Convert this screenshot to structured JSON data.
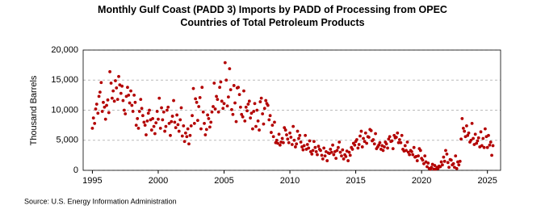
{
  "chart_data": {
    "type": "scatter",
    "title": "Monthly Gulf Coast (PADD 3) Imports by PADD of Processing from OPEC Countries of Total Petroleum Products",
    "y_label": "Thousand Barrels",
    "source": "Source: U.S. Energy Information Administration",
    "color": "#b30000",
    "grid": true,
    "xlim": [
      1994.3,
      2026.0
    ],
    "xticks": [
      1995,
      2000,
      2005,
      2010,
      2015,
      2020,
      2025
    ],
    "ylim": [
      0,
      20000
    ],
    "yticks": [
      0,
      {
        "value": 5000,
        "label": "5,000"
      },
      {
        "value": 10000,
        "label": "10,000"
      },
      {
        "value": 15000,
        "label": "15,000"
      },
      {
        "value": 20000,
        "label": "20,000"
      }
    ],
    "x": [
      1995,
      1995.08,
      1995.17,
      1995.25,
      1995.33,
      1995.42,
      1995.5,
      1995.58,
      1995.67,
      1995.75,
      1995.83,
      1995.92,
      1996,
      1996.08,
      1996.17,
      1996.25,
      1996.33,
      1996.42,
      1996.5,
      1996.58,
      1996.67,
      1996.75,
      1996.83,
      1996.92,
      1997,
      1997.08,
      1997.17,
      1997.25,
      1997.33,
      1997.42,
      1997.5,
      1997.58,
      1997.67,
      1997.75,
      1997.83,
      1997.92,
      1998,
      1998.08,
      1998.17,
      1998.25,
      1998.33,
      1998.42,
      1998.5,
      1998.58,
      1998.67,
      1998.75,
      1998.83,
      1998.92,
      1999,
      1999.08,
      1999.17,
      1999.25,
      1999.33,
      1999.42,
      1999.5,
      1999.58,
      1999.67,
      1999.75,
      1999.83,
      1999.92,
      2000,
      2000.08,
      2000.17,
      2000.25,
      2000.33,
      2000.42,
      2000.5,
      2000.58,
      2000.67,
      2000.75,
      2000.83,
      2000.92,
      2001,
      2001.08,
      2001.17,
      2001.25,
      2001.33,
      2001.42,
      2001.5,
      2001.58,
      2001.67,
      2001.75,
      2001.83,
      2001.92,
      2002,
      2002.08,
      2002.17,
      2002.25,
      2002.33,
      2002.42,
      2002.5,
      2002.58,
      2002.67,
      2002.75,
      2002.83,
      2002.92,
      2003,
      2003.08,
      2003.17,
      2003.25,
      2003.33,
      2003.42,
      2003.5,
      2003.58,
      2003.67,
      2003.75,
      2003.83,
      2003.92,
      2004,
      2004.08,
      2004.17,
      2004.25,
      2004.33,
      2004.42,
      2004.5,
      2004.58,
      2004.67,
      2004.75,
      2004.83,
      2004.92,
      2005,
      2005.08,
      2005.17,
      2005.25,
      2005.33,
      2005.42,
      2005.5,
      2005.58,
      2005.67,
      2005.75,
      2005.83,
      2005.92,
      2006,
      2006.08,
      2006.17,
      2006.25,
      2006.33,
      2006.42,
      2006.5,
      2006.58,
      2006.67,
      2006.75,
      2006.83,
      2006.92,
      2007,
      2007.08,
      2007.17,
      2007.25,
      2007.33,
      2007.42,
      2007.5,
      2007.58,
      2007.67,
      2007.75,
      2007.83,
      2007.92,
      2008,
      2008.08,
      2008.17,
      2008.25,
      2008.33,
      2008.42,
      2008.5,
      2008.58,
      2008.67,
      2008.75,
      2008.83,
      2008.92,
      2009,
      2009.08,
      2009.17,
      2009.25,
      2009.33,
      2009.42,
      2009.5,
      2009.58,
      2009.67,
      2009.75,
      2009.83,
      2009.92,
      2010,
      2010.08,
      2010.17,
      2010.25,
      2010.33,
      2010.42,
      2010.5,
      2010.58,
      2010.67,
      2010.75,
      2010.83,
      2010.92,
      2011,
      2011.08,
      2011.17,
      2011.25,
      2011.33,
      2011.42,
      2011.5,
      2011.58,
      2011.67,
      2011.75,
      2011.83,
      2011.92,
      2012,
      2012.08,
      2012.17,
      2012.25,
      2012.33,
      2012.42,
      2012.5,
      2012.58,
      2012.67,
      2012.75,
      2012.83,
      2012.92,
      2013,
      2013.08,
      2013.17,
      2013.25,
      2013.33,
      2013.42,
      2013.5,
      2013.58,
      2013.67,
      2013.75,
      2013.83,
      2013.92,
      2014,
      2014.08,
      2014.17,
      2014.25,
      2014.33,
      2014.42,
      2014.5,
      2014.58,
      2014.67,
      2014.75,
      2014.83,
      2014.92,
      2015,
      2015.08,
      2015.17,
      2015.25,
      2015.33,
      2015.42,
      2015.5,
      2015.58,
      2015.67,
      2015.75,
      2015.83,
      2015.92,
      2016,
      2016.08,
      2016.17,
      2016.25,
      2016.33,
      2016.42,
      2016.5,
      2016.58,
      2016.67,
      2016.75,
      2016.83,
      2016.92,
      2017,
      2017.08,
      2017.17,
      2017.25,
      2017.33,
      2017.42,
      2017.5,
      2017.58,
      2017.67,
      2017.75,
      2017.83,
      2017.92,
      2018,
      2018.08,
      2018.17,
      2018.25,
      2018.33,
      2018.42,
      2018.5,
      2018.58,
      2018.67,
      2018.75,
      2018.83,
      2018.92,
      2019,
      2019.08,
      2019.17,
      2019.25,
      2019.33,
      2019.42,
      2019.5,
      2019.58,
      2019.67,
      2019.75,
      2019.83,
      2019.92,
      2020,
      2020.08,
      2020.17,
      2020.25,
      2020.33,
      2020.42,
      2020.5,
      2020.58,
      2020.67,
      2020.75,
      2020.83,
      2020.92,
      2021,
      2021.08,
      2021.17,
      2021.25,
      2021.33,
      2021.42,
      2021.5,
      2021.58,
      2021.67,
      2021.75,
      2021.83,
      2021.92,
      2022,
      2022.08,
      2022.17,
      2022.25,
      2022.33,
      2022.42,
      2022.5,
      2022.58,
      2022.67,
      2022.75,
      2022.83,
      2022.92,
      2023,
      2023.08,
      2023.17,
      2023.25,
      2023.33,
      2023.42,
      2023.5,
      2023.58,
      2023.67,
      2023.75,
      2023.83,
      2023.92,
      2024,
      2024.08,
      2024.17,
      2024.25,
      2024.33,
      2024.42,
      2024.5,
      2024.58,
      2024.67,
      2024.75,
      2024.83,
      2024.92,
      2025,
      2025.08,
      2025.17,
      2025.25,
      2025.33,
      2025.42
    ],
    "values": [
      7000,
      8700,
      7800,
      10200,
      11000,
      9500,
      12300,
      13000,
      14600,
      9800,
      11300,
      10500,
      8500,
      10800,
      11700,
      9600,
      16400,
      14500,
      12000,
      13200,
      11500,
      14900,
      13700,
      11800,
      15600,
      14200,
      12800,
      14000,
      11600,
      10000,
      9400,
      12300,
      13800,
      12500,
      11200,
      13200,
      10800,
      9800,
      12500,
      11300,
      7500,
      8600,
      7000,
      9800,
      11800,
      10300,
      9100,
      8000,
      7500,
      5900,
      8200,
      9500,
      10000,
      8400,
      6700,
      8600,
      7300,
      6100,
      7900,
      9800,
      8500,
      12000,
      7000,
      10400,
      8400,
      9700,
      6500,
      7300,
      10000,
      10500,
      7800,
      5800,
      8100,
      9000,
      11600,
      8000,
      7100,
      9200,
      7600,
      6500,
      8400,
      10400,
      5700,
      7400,
      4800,
      6200,
      5600,
      6900,
      4400,
      5800,
      7400,
      9100,
      13600,
      7800,
      11900,
      11300,
      8300,
      10600,
      12100,
      6900,
      13800,
      9700,
      7800,
      5900,
      6800,
      9200,
      8600,
      7200,
      8000,
      9700,
      10600,
      14500,
      10200,
      12300,
      11800,
      9700,
      13800,
      14700,
      11500,
      10300,
      11100,
      17900,
      15000,
      10700,
      12200,
      16900,
      13400,
      10100,
      9300,
      14100,
      11200,
      8100,
      13700,
      13800,
      12600,
      10500,
      9300,
      8900,
      13200,
      8200,
      10500,
      9900,
      11000,
      11500,
      8700,
      9500,
      6900,
      9800,
      11100,
      7300,
      10000,
      8200,
      6700,
      11400,
      12000,
      9400,
      7700,
      10300,
      11600,
      11100,
      10800,
      8400,
      9100,
      6300,
      7500,
      5600,
      8000,
      4600,
      5000,
      4500,
      6000,
      4200,
      4700,
      5300,
      4600,
      7100,
      6700,
      5900,
      5200,
      4600,
      6200,
      5500,
      4300,
      7300,
      5000,
      3900,
      4400,
      6500,
      5300,
      5800,
      4700,
      3900,
      3400,
      4100,
      5800,
      3500,
      4300,
      3700,
      4900,
      3100,
      2700,
      3300,
      4800,
      3800,
      3100,
      2600,
      4000,
      3500,
      3300,
      2500,
      1900,
      3700,
      2400,
      3100,
      1600,
      2900,
      2800,
      3500,
      3000,
      4200,
      2600,
      3100,
      2000,
      3300,
      3800,
      4700,
      3000,
      2400,
      3400,
      1900,
      2600,
      2300,
      3200,
      1600,
      3000,
      2500,
      3800,
      3500,
      4500,
      4200,
      4800,
      5100,
      3700,
      4300,
      5700,
      6500,
      3900,
      5300,
      4800,
      6200,
      4500,
      5600,
      5500,
      6800,
      6600,
      4900,
      5100,
      4400,
      6100,
      3600,
      3900,
      4200,
      4600,
      3500,
      4100,
      3300,
      3900,
      4700,
      4400,
      3700,
      5200,
      5600,
      4800,
      4900,
      3600,
      5800,
      5400,
      5500,
      6200,
      4600,
      5100,
      4600,
      5800,
      3500,
      3200,
      4100,
      3300,
      4700,
      3000,
      2600,
      3300,
      3100,
      2600,
      3800,
      2200,
      2300,
      1600,
      2400,
      3600,
      3300,
      2000,
      1700,
      1100,
      2400,
      1400,
      600,
      1200,
      300,
      200,
      500,
      1000,
      200,
      800,
      200,
      500,
      300,
      700,
      600,
      1400,
      900,
      2200,
      1500,
      3300,
      2700,
      1300,
      500,
      1800,
      1700,
      900,
      1100,
      500,
      2400,
      300,
      1400,
      900,
      1500,
      5200,
      8600,
      7000,
      6500,
      5600,
      7400,
      5800,
      6200,
      4700,
      5000,
      7800,
      5300,
      4300,
      6000,
      4500,
      4900,
      5400,
      3900,
      6400,
      4100,
      5300,
      3800,
      6900,
      5600,
      3800,
      5800,
      4200,
      4700,
      2500,
      4100
    ]
  }
}
